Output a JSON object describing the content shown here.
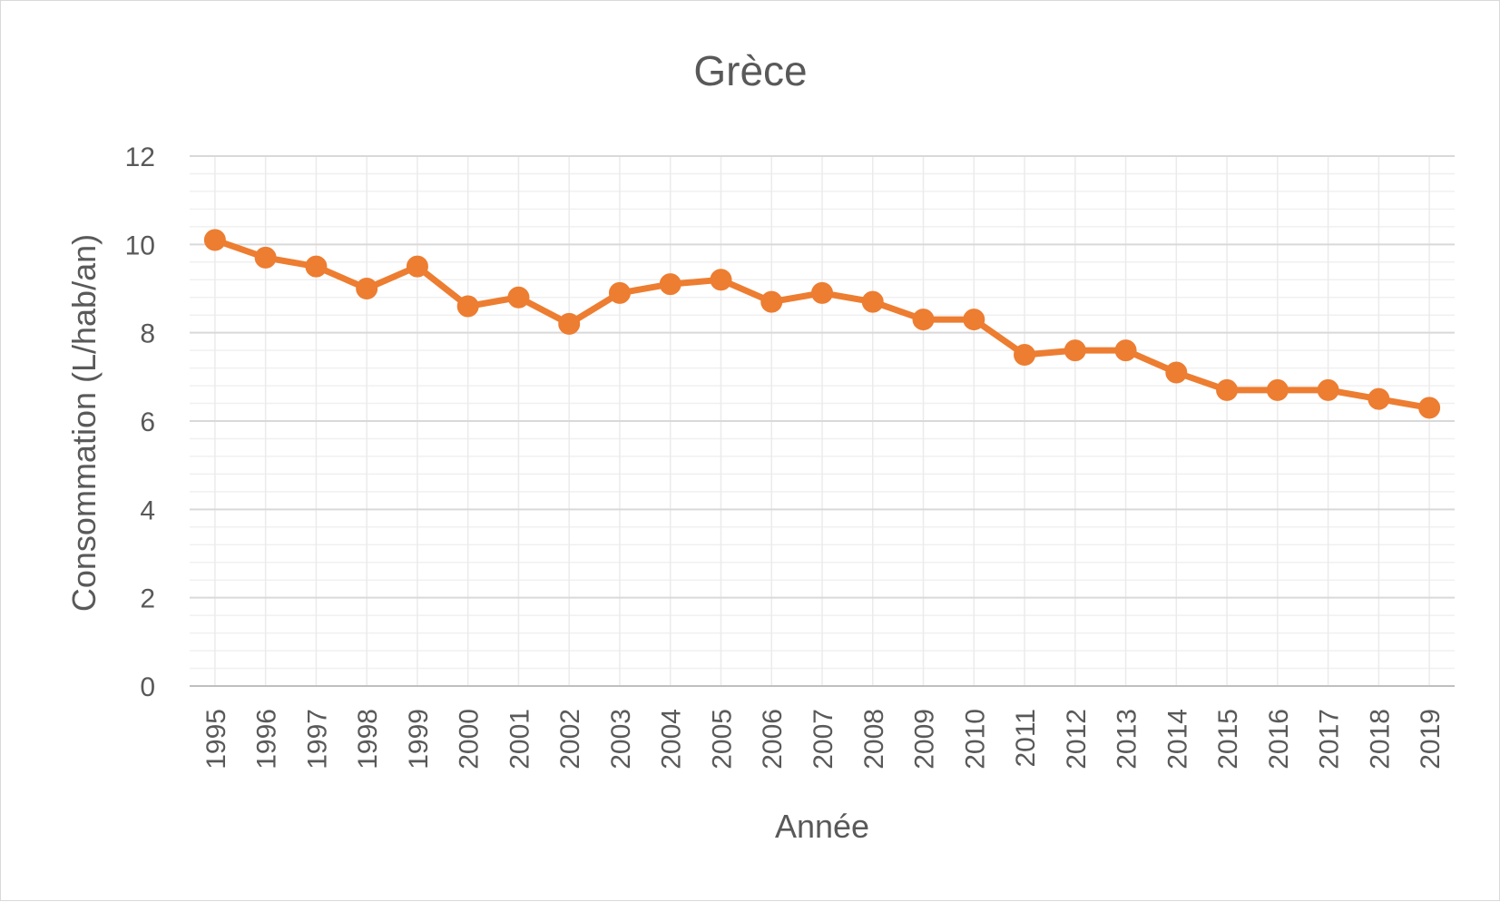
{
  "chart_data": {
    "type": "line",
    "title": "Grèce",
    "xlabel": "Année",
    "ylabel": "Consommation (L/hab/an)",
    "ylim": [
      0,
      12
    ],
    "y_ticks": [
      "0",
      "2",
      "4",
      "6",
      "8",
      "10",
      "12"
    ],
    "grid": true,
    "legend": "none",
    "categories": [
      "1995",
      "1996",
      "1997",
      "1998",
      "1999",
      "2000",
      "2001",
      "2002",
      "2003",
      "2004",
      "2005",
      "2006",
      "2007",
      "2008",
      "2009",
      "2010",
      "2011",
      "2012",
      "2013",
      "2014",
      "2015",
      "2016",
      "2017",
      "2018",
      "2019"
    ],
    "series": [
      {
        "color": "#ed7d31",
        "values": [
          10.1,
          9.7,
          9.5,
          9.0,
          9.5,
          8.6,
          8.8,
          8.2,
          8.9,
          9.1,
          9.2,
          8.7,
          8.9,
          8.7,
          8.3,
          8.3,
          7.5,
          7.6,
          7.6,
          7.1,
          6.7,
          6.7,
          6.7,
          6.5,
          6.3
        ]
      }
    ]
  }
}
